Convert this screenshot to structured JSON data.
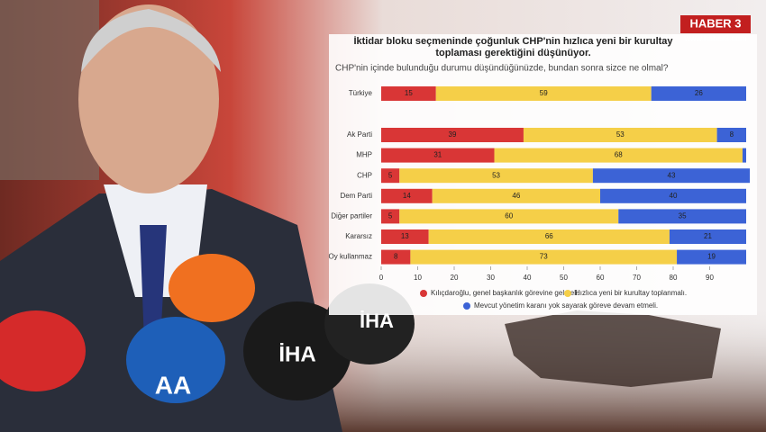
{
  "chart_data": {
    "type": "stacked-bar-horizontal",
    "title": "İktidar bloku seçmeninde çoğunluk CHP'nin hızlıca yeni bir kurultay toplaması gerektiğini düşünüyor.",
    "subtitle": "CHP'nin içinde bulunduğu durumu düşündüğünüzde, bundan sonra sizce ne olmal?",
    "categories": [
      "Türkiye",
      "Ak Parti",
      "MHP",
      "CHP",
      "Dem Parti",
      "Diğer partiler",
      "Kararsız",
      "Oy kullanmaz"
    ],
    "series": [
      {
        "name": "Kılıçdaroğlu, genel başkanlık görevine gelmeli.",
        "color": "#d93636",
        "values": [
          15,
          39,
          31,
          5,
          14,
          5,
          13,
          8
        ]
      },
      {
        "name": "Hızlıca yeni bir kurultay toplanmalı.",
        "color": "#f5cf48",
        "values": [
          59,
          53,
          68,
          53,
          46,
          60,
          66,
          73
        ]
      },
      {
        "name": "Mevcut yönetim karanı yok sayarak göreve devam etmeli.",
        "color": "#3c63d6",
        "values": [
          26,
          8,
          1,
          43,
          40,
          35,
          21,
          19
        ],
        "value_labels": [
          "26",
          "8",
          null,
          "43",
          "40",
          "35",
          "21",
          "19"
        ]
      }
    ],
    "xlim": [
      0,
      100
    ],
    "xticks": [
      0,
      10,
      20,
      30,
      40,
      50,
      60,
      70,
      80,
      90
    ]
  },
  "logo": {
    "name": "HABER 3",
    "url": "www.haber3.com"
  },
  "mic_labels": [
    "İHA",
    "İHA",
    "AA"
  ]
}
